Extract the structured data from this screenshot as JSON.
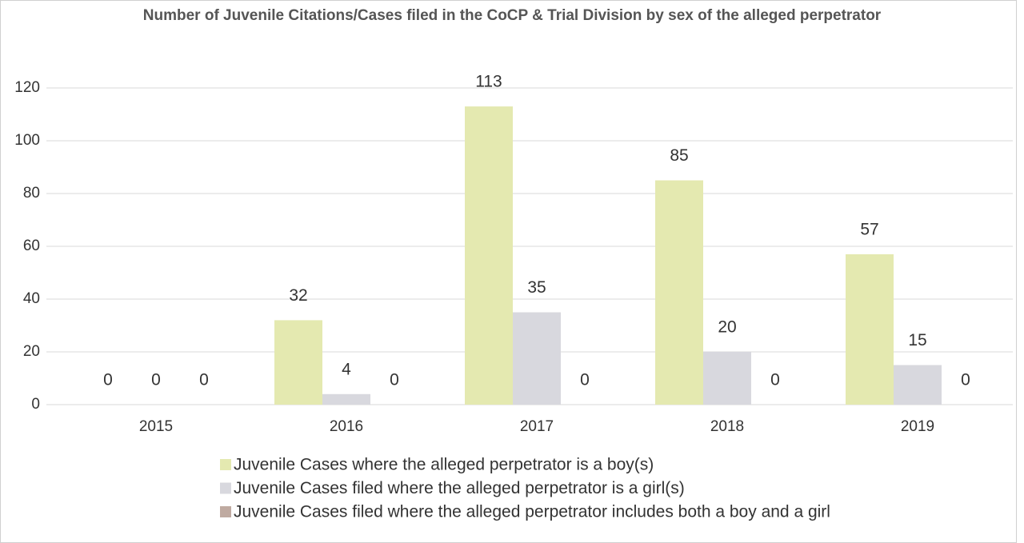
{
  "chart_data": {
    "type": "bar",
    "title": "Number of Juvenile Citations/Cases filed in the CoCP & Trial Division by sex of the alleged perpetrator",
    "categories": [
      "2015",
      "2016",
      "2017",
      "2018",
      "2019"
    ],
    "series": [
      {
        "name": "Juvenile Cases where the alleged perpetrator is a boy(s)",
        "color": "#e4e9b0",
        "values": [
          0,
          32,
          113,
          85,
          57
        ]
      },
      {
        "name": "Juvenile Cases filed where the alleged perpetrator is a girl(s)",
        "color": "#d8d8de",
        "values": [
          0,
          4,
          35,
          20,
          15
        ]
      },
      {
        "name": "Juvenile Cases filed where the alleged perpetrator includes both a boy and a girl",
        "color": "#bfaaa1",
        "values": [
          0,
          0,
          0,
          0,
          0
        ]
      }
    ],
    "ylim": [
      0,
      120
    ],
    "yticks": [
      0,
      20,
      40,
      60,
      80,
      100,
      120
    ],
    "grid": true,
    "legend": "bottom"
  }
}
